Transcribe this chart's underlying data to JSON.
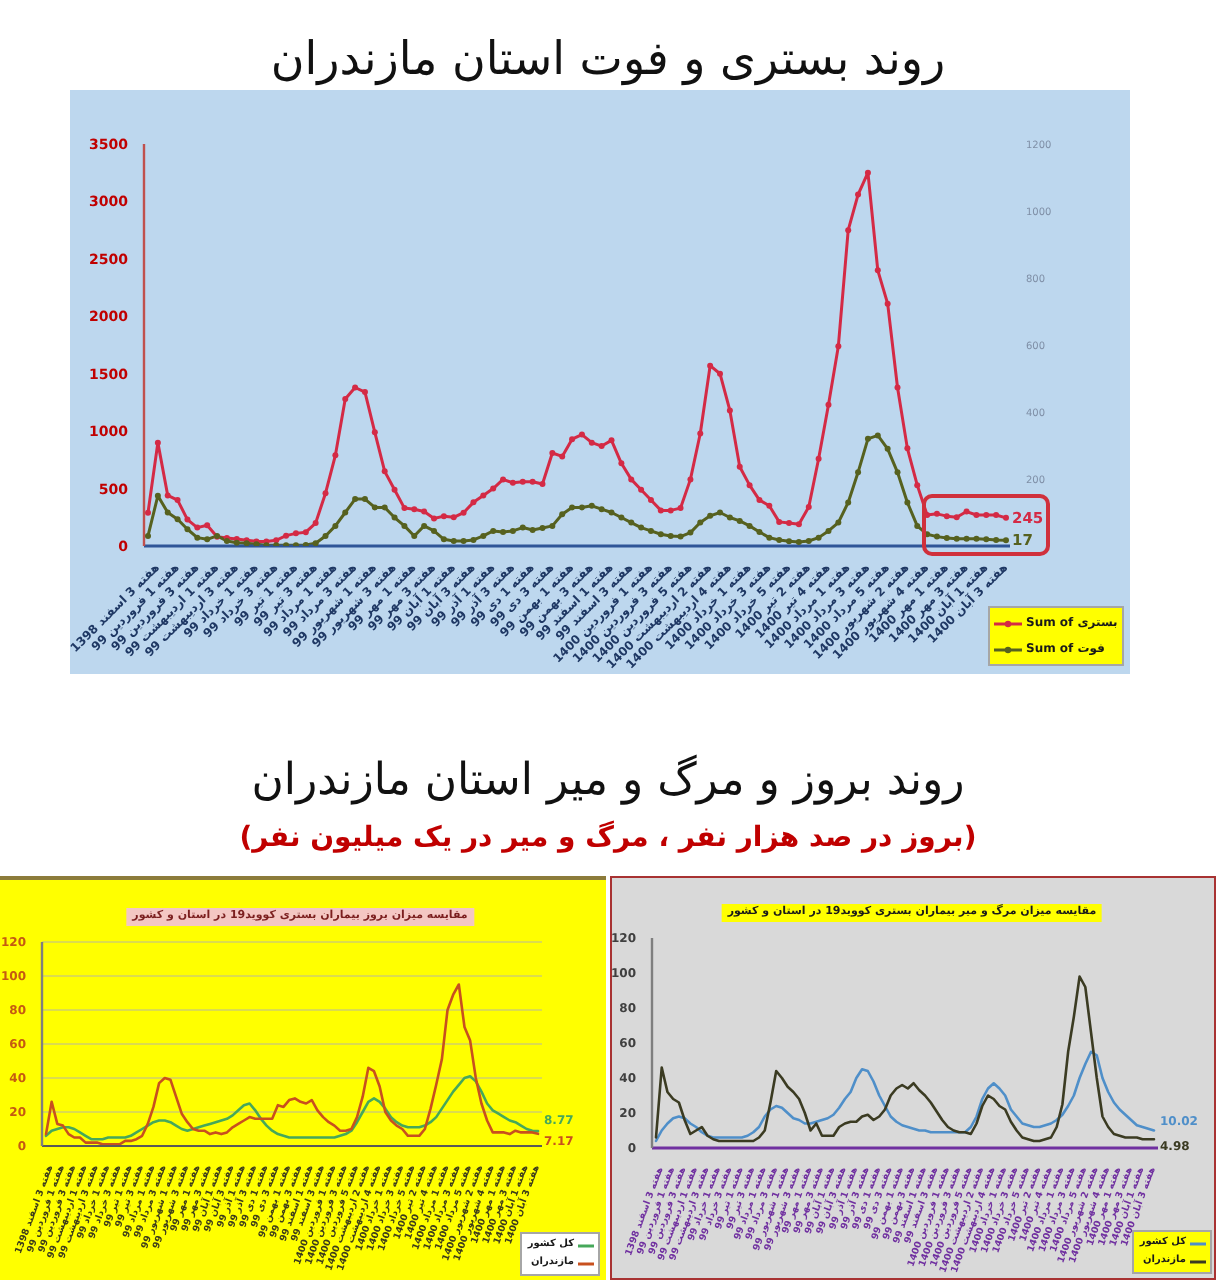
{
  "chart_data": [
    {
      "type": "line",
      "title": "روند بستری و فوت استان مازندران",
      "categories": [
        null,
        "هفته 3 اسفند 1398",
        null,
        "هفته 1 فروردین 99",
        null,
        "هفته 3 فروردین 99",
        null,
        "هفته 1 اردیبهشت 99",
        null,
        "هفته 3 اردیبهشت 99",
        null,
        "هفته 1 خرداد 99",
        null,
        "هفته 3 خرداد 99",
        null,
        "هفته 1 تیر 99",
        null,
        "هفته 3 تیر 99",
        null,
        "هفته 1 مرداد 99",
        null,
        "هفته 3 مرداد 99",
        null,
        "هفته 1 شهریور 99",
        null,
        "هفته 3 شهریور 99",
        null,
        "هفته 1 مهر 99",
        null,
        "هفته 3 مهر 99",
        null,
        "هفته 1 آبان 99",
        null,
        "هفته 3 آبان 99",
        null,
        "هفته 1 آذر 99",
        null,
        "هفته 3 آذر 99",
        null,
        "هفته 1 دی 99",
        null,
        "هفته 3 دی 99",
        null,
        "هفته 1 بهمن 99",
        null,
        "هفته 3 بهمن 99",
        null,
        "هفته 1 اسفند 99",
        null,
        "هفته 3 اسفند 99",
        null,
        "هفته 1 فروردین 1400",
        null,
        "هفته 3 فروردین 1400",
        null,
        "هفته 5 فروردین 1400",
        null,
        "هفته 2 اردیبهشت 1400",
        null,
        "هفته 4 اردیبهشت 1400",
        null,
        "هفته 1 خرداد 1400",
        null,
        "هفته 3 خرداد 1400",
        null,
        "هفته 5 خرداد 1400",
        null,
        "هفته 2 تیر 1400",
        null,
        "هفته 4 تیر 1400",
        null,
        "هفته 1 مرداد 1400",
        null,
        "هفته 3 مرداد 1400",
        null,
        "هفته 5 مرداد 1400",
        null,
        "هفته 2 شهریور 1400",
        null,
        "هفته 4 شهریور 1400",
        null,
        "هفته 1 مهر 1400",
        null,
        "هفته 3 مهر 1400",
        null,
        "هفته 1 آبان 1400",
        null,
        "هفته 3 آبان 1400"
      ],
      "ylim": [
        0,
        3500
      ],
      "yticks": [
        0,
        500,
        1000,
        1500,
        2000,
        2500,
        3000,
        3500
      ],
      "y2lim": [
        0,
        1200
      ],
      "y2ticks": [
        200,
        400,
        600,
        800,
        1000,
        1200
      ],
      "series": [
        {
          "name": "Sum of بستری",
          "color": "#d42a45",
          "values": [
            290,
            900,
            440,
            400,
            230,
            160,
            180,
            80,
            70,
            60,
            50,
            40,
            40,
            50,
            90,
            110,
            120,
            200,
            460,
            790,
            1280,
            1380,
            1340,
            990,
            650,
            490,
            330,
            320,
            300,
            240,
            260,
            250,
            290,
            380,
            440,
            500,
            580,
            550,
            560,
            560,
            540,
            810,
            780,
            930,
            970,
            900,
            870,
            920,
            720,
            580,
            490,
            400,
            310,
            310,
            330,
            580,
            980,
            1570,
            1500,
            1180,
            690,
            530,
            400,
            350,
            210,
            200,
            190,
            340,
            760,
            1230,
            1740,
            2750,
            3060,
            3250,
            2400,
            2110,
            1380,
            850,
            530,
            270,
            280,
            260,
            250,
            300,
            270,
            270,
            270,
            245
          ],
          "value_labels": [
            null,
            null,
            null,
            null,
            null,
            null,
            null,
            null,
            null,
            null,
            null,
            null,
            null,
            null,
            null,
            null,
            null,
            null,
            null,
            null,
            null,
            null,
            null,
            null,
            null,
            null,
            null,
            null,
            null,
            null,
            null,
            null,
            null,
            null,
            null,
            null,
            null,
            null,
            null,
            null,
            null,
            null,
            null,
            null,
            null,
            null,
            null,
            null,
            null,
            null,
            null,
            null,
            null,
            null,
            null,
            null,
            null,
            null,
            null,
            null,
            null,
            null,
            null,
            null,
            null,
            null,
            null,
            null,
            null,
            null,
            null,
            null,
            null,
            null,
            null,
            null,
            null,
            null,
            null,
            null,
            null,
            null,
            null,
            null,
            null,
            null,
            null,
            "245"
          ]
        },
        {
          "name": "Sum of فوت",
          "color": "#56611f",
          "axis": "y2",
          "values": [
            30,
            150,
            100,
            80,
            50,
            25,
            20,
            30,
            15,
            10,
            8,
            5,
            2,
            2,
            2,
            2,
            3,
            8,
            30,
            60,
            100,
            140,
            140,
            115,
            115,
            85,
            60,
            30,
            60,
            45,
            20,
            15,
            15,
            18,
            30,
            45,
            42,
            45,
            55,
            48,
            54,
            60,
            95,
            115,
            115,
            120,
            110,
            100,
            85,
            70,
            55,
            45,
            35,
            30,
            28,
            40,
            70,
            90,
            100,
            85,
            75,
            60,
            42,
            25,
            18,
            14,
            12,
            15,
            25,
            45,
            70,
            130,
            220,
            320,
            330,
            290,
            220,
            130,
            60,
            35,
            28,
            24,
            22,
            22,
            22,
            20,
            18,
            17
          ],
          "value_labels": [
            null,
            null,
            null,
            null,
            null,
            null,
            null,
            null,
            null,
            null,
            null,
            null,
            null,
            null,
            null,
            null,
            null,
            null,
            null,
            null,
            null,
            null,
            null,
            null,
            null,
            null,
            null,
            null,
            null,
            null,
            null,
            null,
            null,
            null,
            null,
            null,
            null,
            null,
            null,
            null,
            null,
            null,
            null,
            null,
            null,
            null,
            null,
            null,
            null,
            null,
            null,
            null,
            null,
            null,
            null,
            null,
            null,
            null,
            null,
            null,
            null,
            null,
            null,
            null,
            null,
            null,
            null,
            null,
            null,
            null,
            null,
            null,
            null,
            null,
            null,
            null,
            null,
            null,
            null,
            null,
            null,
            null,
            null,
            null,
            null,
            null,
            null,
            "17"
          ]
        }
      ],
      "legend": "bottom right",
      "marker": "circle"
    },
    {
      "type": "line",
      "title": "روند بروز و مرگ و میر استان مازندران",
      "subtitle": "(بروز در صد هزار نفر ، مرگ و میر در یک میلیون نفر)",
      "annotations": [
        "مقایسه میزان بروز بیماران بستری کووید19 در استان و کشور"
      ],
      "categories": [
        null,
        "هفته 3 اسفند 1398",
        null,
        "هفته 1 فروردین 99",
        null,
        "هفته 3 فروردین 99",
        null,
        "هفته 1 اردیبهشت 99",
        null,
        "هفته 3 اردیبهشت 99",
        null,
        "هفته 1 خرداد 99",
        null,
        "هفته 3 خرداد 99",
        null,
        "هفته 1 تیر 99",
        null,
        "هفته 3 تیر 99",
        null,
        "هفته 1 مرداد 99",
        null,
        "هفته 3 مرداد 99",
        null,
        "هفته 1 شهریور 99",
        null,
        "هفته 3 شهریور 99",
        null,
        "هفته 1 مهر 99",
        null,
        "هفته 3 مهر 99",
        null,
        "هفته 1 آبان 99",
        null,
        "هفته 3 آبان 99",
        null,
        "هفته 1 آذر 99",
        null,
        "هفته 3 آذر 99",
        null,
        "هفته 1 دی 99",
        null,
        "هفته 3 دی 99",
        null,
        "هفته 1 بهمن 99",
        null,
        "هفته 3 بهمن 99",
        null,
        "هفته 1 اسفند 99",
        null,
        "هفته 3 اسفند 99",
        null,
        "هفته 1 فروردین 1400",
        null,
        "هفته 3 فروردین 1400",
        null,
        "هفته 5 فروردین 1400",
        null,
        "هفته 2 اردیبهشت 1400",
        null,
        "هفته 4 اردیبهشت 1400",
        null,
        "هفته 1 خرداد 1400",
        null,
        "هفته 3 خرداد 1400",
        null,
        "هفته 5 خرداد 1400",
        null,
        "هفته 2 تیر 1400",
        null,
        "هفته 4 تیر 1400",
        null,
        "هفته 1 مرداد 1400",
        null,
        "هفته 3 مرداد 1400",
        null,
        "هفته 5 مرداد 1400",
        null,
        "هفته 2 شهریور 1400",
        null,
        "هفته 4 شهریور 1400",
        null,
        "هفته 1 مهر 1400",
        null,
        "هفته 3 مهر 1400",
        null,
        "هفته 1 آبان 1400",
        null,
        "هفته 3 آبان 1400"
      ],
      "ylim": [
        0,
        120
      ],
      "yticks": [
        0,
        20,
        40,
        60,
        80,
        100,
        120
      ],
      "grid": "y",
      "series": [
        {
          "name": "کل کشور",
          "color": "#46a85a",
          "values": [
            6,
            9,
            10,
            11,
            11,
            10,
            8,
            6,
            4,
            4,
            4,
            5,
            5,
            5,
            5,
            6,
            8,
            10,
            12,
            14,
            15,
            15,
            14,
            12,
            10,
            9,
            10,
            11,
            12,
            13,
            14,
            15,
            16,
            18,
            21,
            24,
            25,
            21,
            16,
            12,
            9,
            7,
            6,
            5,
            5,
            5,
            5,
            5,
            5,
            5,
            5,
            5,
            6,
            7,
            9,
            14,
            20,
            26,
            28,
            26,
            22,
            17,
            14,
            12,
            11,
            11,
            11,
            12,
            14,
            17,
            22,
            27,
            32,
            36,
            40,
            41,
            38,
            32,
            25,
            21,
            19,
            17,
            15,
            14,
            12,
            10,
            9,
            8.77
          ],
          "value_labels": [
            null,
            null,
            null,
            null,
            null,
            null,
            null,
            null,
            null,
            null,
            null,
            null,
            null,
            null,
            null,
            null,
            null,
            null,
            null,
            null,
            null,
            null,
            null,
            null,
            null,
            null,
            null,
            null,
            null,
            null,
            null,
            null,
            null,
            null,
            null,
            null,
            null,
            null,
            null,
            null,
            null,
            null,
            null,
            null,
            null,
            null,
            null,
            null,
            null,
            null,
            null,
            null,
            null,
            null,
            null,
            null,
            null,
            null,
            null,
            null,
            null,
            null,
            null,
            null,
            null,
            null,
            null,
            null,
            null,
            null,
            null,
            null,
            null,
            null,
            null,
            null,
            null,
            null,
            null,
            null,
            null,
            null,
            null,
            null,
            null,
            null,
            null,
            "8.77"
          ]
        },
        {
          "name": "مازندران",
          "color": "#c8501e",
          "values": [
            7,
            26,
            13,
            12,
            7,
            5,
            5,
            2,
            2,
            2,
            1,
            1,
            1,
            1,
            3,
            3,
            4,
            6,
            13,
            23,
            37,
            40,
            39,
            29,
            19,
            14,
            10,
            9,
            9,
            7,
            8,
            7,
            8,
            11,
            13,
            15,
            17,
            16,
            16,
            16,
            16,
            24,
            23,
            27,
            28,
            26,
            25,
            27,
            21,
            17,
            14,
            12,
            9,
            9,
            10,
            17,
            29,
            46,
            44,
            35,
            20,
            15,
            12,
            10,
            6,
            6,
            6,
            10,
            22,
            36,
            51,
            80,
            89,
            95,
            70,
            62,
            40,
            25,
            15,
            8,
            8,
            8,
            7,
            9,
            8,
            8,
            8,
            7.17
          ],
          "value_labels": [
            null,
            null,
            null,
            null,
            null,
            null,
            null,
            null,
            null,
            null,
            null,
            null,
            null,
            null,
            null,
            null,
            null,
            null,
            null,
            null,
            null,
            null,
            null,
            null,
            null,
            null,
            null,
            null,
            null,
            null,
            null,
            null,
            null,
            null,
            null,
            null,
            null,
            null,
            null,
            null,
            null,
            null,
            null,
            null,
            null,
            null,
            null,
            null,
            null,
            null,
            null,
            null,
            null,
            null,
            null,
            null,
            null,
            null,
            null,
            null,
            null,
            null,
            null,
            null,
            null,
            null,
            null,
            null,
            null,
            null,
            null,
            null,
            null,
            null,
            null,
            null,
            null,
            null,
            null,
            null,
            null,
            null,
            null,
            null,
            null,
            null,
            null,
            "7.17"
          ]
        }
      ],
      "legend": "bottom right",
      "marker": "none"
    },
    {
      "type": "line",
      "annotations": [
        "مقایسه میزان مرگ و میر بیماران بستری کووید19 در استان و کشور"
      ],
      "categories": [
        null,
        "هفته 3 اسفند 1398",
        null,
        "هفته 1 فروردین 99",
        null,
        "هفته 3 فروردین 99",
        null,
        "هفته 1 اردیبهشت 99",
        null,
        "هفته 3 اردیبهشت 99",
        null,
        "هفته 1 خرداد 99",
        null,
        "هفته 3 خرداد 99",
        null,
        "هفته 1 تیر 99",
        null,
        "هفته 3 تیر 99",
        null,
        "هفته 1 مرداد 99",
        null,
        "هفته 3 مرداد 99",
        null,
        "هفته 1 شهریور 99",
        null,
        "هفته 3 شهریور 99",
        null,
        "هفته 1 مهر 99",
        null,
        "هفته 3 مهر 99",
        null,
        "هفته 1 آبان 99",
        null,
        "هفته 3 آبان 99",
        null,
        "هفته 1 آذر 99",
        null,
        "هفته 3 آذر 99",
        null,
        "هفته 1 دی 99",
        null,
        "هفته 3 دی 99",
        null,
        "هفته 1 بهمن 99",
        null,
        "هفته 3 بهمن 99",
        null,
        "هفته 1 اسفند 99",
        null,
        "هفته 3 اسفند 99",
        null,
        "هفته 1 فروردین 1400",
        null,
        "هفته 3 فروردین 1400",
        null,
        "هفته 5 فروردین 1400",
        null,
        "هفته 2 اردیبهشت 1400",
        null,
        "هفته 4 اردیبهشت 1400",
        null,
        "هفته 1 خرداد 1400",
        null,
        "هفته 3 خرداد 1400",
        null,
        "هفته 5 خرداد 1400",
        null,
        "هفته 2 تیر 1400",
        null,
        "هفته 4 تیر 1400",
        null,
        "هفته 1 مرداد 1400",
        null,
        "هفته 3 مرداد 1400",
        null,
        "هفته 5 مرداد 1400",
        null,
        "هفته 2 شهریور 1400",
        null,
        "هفته 4 شهریور 1400",
        null,
        "هفته 1 مهر 1400",
        null,
        "هفته 3 مهر 1400",
        null,
        "هفته 1 آبان 1400",
        null,
        "هفته 3 آبان 1400"
      ],
      "ylim": [
        0,
        120
      ],
      "yticks": [
        0,
        20,
        40,
        60,
        80,
        100,
        120
      ],
      "series": [
        {
          "name": "کل کشور",
          "color": "#4f8fc9",
          "values": [
            4,
            10,
            14,
            17,
            18,
            17,
            14,
            12,
            9,
            7,
            6,
            6,
            6,
            6,
            6,
            6,
            7,
            9,
            12,
            18,
            22,
            24,
            23,
            20,
            17,
            16,
            14,
            14,
            15,
            16,
            17,
            19,
            23,
            28,
            32,
            40,
            45,
            44,
            38,
            30,
            24,
            18,
            15,
            13,
            12,
            11,
            10,
            10,
            9,
            9,
            9,
            9,
            9,
            9,
            9,
            12,
            18,
            28,
            34,
            37,
            34,
            30,
            22,
            18,
            14,
            13,
            12,
            12,
            13,
            14,
            16,
            19,
            24,
            30,
            40,
            48,
            55,
            53,
            40,
            32,
            26,
            22,
            19,
            16,
            13,
            12,
            11,
            10.02
          ],
          "value_labels": [
            null,
            null,
            null,
            null,
            null,
            null,
            null,
            null,
            null,
            null,
            null,
            null,
            null,
            null,
            null,
            null,
            null,
            null,
            null,
            null,
            null,
            null,
            null,
            null,
            null,
            null,
            null,
            null,
            null,
            null,
            null,
            null,
            null,
            null,
            null,
            null,
            null,
            null,
            null,
            null,
            null,
            null,
            null,
            null,
            null,
            null,
            null,
            null,
            null,
            null,
            null,
            null,
            null,
            null,
            null,
            null,
            null,
            null,
            null,
            null,
            null,
            null,
            null,
            null,
            null,
            null,
            null,
            null,
            null,
            null,
            null,
            null,
            null,
            null,
            null,
            null,
            null,
            null,
            null,
            null,
            null,
            null,
            null,
            null,
            null,
            null,
            null,
            "10.02"
          ]
        },
        {
          "name": "مازندران",
          "color": "#3b3b22",
          "values": [
            6,
            46,
            32,
            28,
            26,
            16,
            8,
            10,
            12,
            7,
            5,
            4,
            4,
            4,
            4,
            4,
            4,
            4,
            6,
            10,
            26,
            44,
            40,
            35,
            32,
            28,
            20,
            10,
            14,
            7,
            7,
            7,
            12,
            14,
            15,
            15,
            18,
            19,
            16,
            18,
            22,
            30,
            34,
            36,
            34,
            37,
            33,
            30,
            26,
            21,
            16,
            12,
            10,
            9,
            9,
            8,
            14,
            24,
            30,
            28,
            24,
            22,
            15,
            10,
            6,
            5,
            4,
            4,
            5,
            6,
            12,
            25,
            55,
            75,
            98,
            92,
            66,
            40,
            18,
            12,
            8,
            7,
            6,
            6,
            6,
            5,
            5,
            4.98
          ],
          "value_labels": [
            null,
            null,
            null,
            null,
            null,
            null,
            null,
            null,
            null,
            null,
            null,
            null,
            null,
            null,
            null,
            null,
            null,
            null,
            null,
            null,
            null,
            null,
            null,
            null,
            null,
            null,
            null,
            null,
            null,
            null,
            null,
            null,
            null,
            null,
            null,
            null,
            null,
            null,
            null,
            null,
            null,
            null,
            null,
            null,
            null,
            null,
            null,
            null,
            null,
            null,
            null,
            null,
            null,
            null,
            null,
            null,
            null,
            null,
            null,
            null,
            null,
            null,
            null,
            null,
            null,
            null,
            null,
            null,
            null,
            null,
            null,
            null,
            null,
            null,
            null,
            null,
            null,
            null,
            null,
            null,
            null,
            null,
            null,
            null,
            null,
            null,
            null,
            "4.98"
          ]
        }
      ],
      "legend": "bottom right",
      "marker": "none"
    }
  ]
}
